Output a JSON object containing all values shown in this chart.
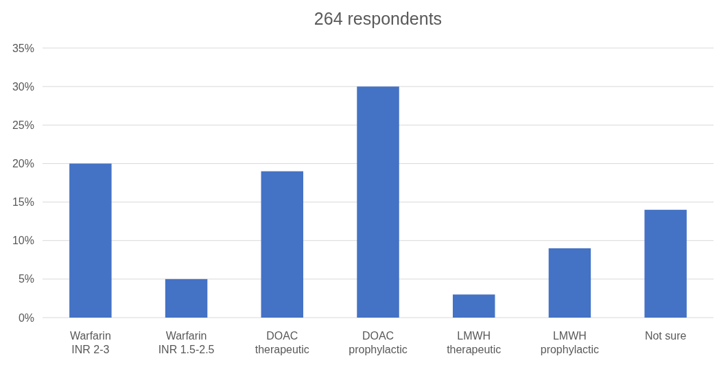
{
  "chart_data": {
    "type": "bar",
    "title": "264 respondents",
    "categories": [
      "Warfarin\nINR 2-3",
      "Warfarin\nINR 1.5-2.5",
      "DOAC\ntherapeutic",
      "DOAC\nprophylactic",
      "LMWH\ntherapeutic",
      "LMWH\nprophylactic",
      "Not sure"
    ],
    "values": [
      20,
      5,
      19,
      30,
      3,
      9,
      14
    ],
    "color": "#4472c4",
    "ylim": [
      0,
      35
    ],
    "yticks": [
      {
        "value": 0,
        "label": "0%"
      },
      {
        "value": 5,
        "label": "5%"
      },
      {
        "value": 10,
        "label": "10%"
      },
      {
        "value": 15,
        "label": "15%"
      },
      {
        "value": 20,
        "label": "20%"
      },
      {
        "value": 25,
        "label": "25%"
      },
      {
        "value": 30,
        "label": "30%"
      },
      {
        "value": 35,
        "label": "35%"
      }
    ],
    "grid": "y"
  }
}
